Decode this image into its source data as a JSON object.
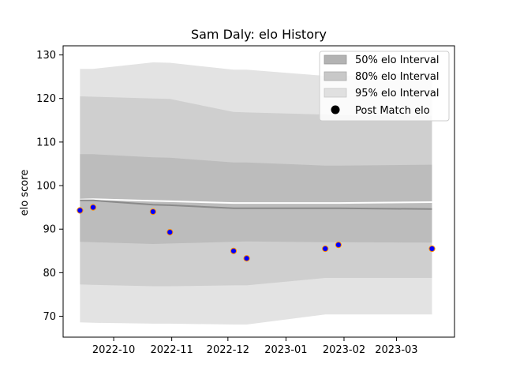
{
  "chart_data": {
    "type": "area",
    "title": "Sam Daly: elo History",
    "xlabel": "",
    "ylabel": "elo score",
    "x_ticks": [
      "2022-10",
      "2022-11",
      "2022-12",
      "2023-01",
      "2023-02",
      "2023-03"
    ],
    "x_tick_dates": [
      "2022-10-01",
      "2022-11-01",
      "2022-12-01",
      "2023-01-01",
      "2023-02-01",
      "2023-03-01"
    ],
    "xlim": [
      "2022-09-04",
      "2023-04-01"
    ],
    "y_ticks": [
      "70",
      "80",
      "90",
      "100",
      "110",
      "120",
      "130"
    ],
    "ylim": [
      65.2,
      132.1
    ],
    "grid": false,
    "legend": {
      "position": "top-right",
      "entries": [
        "50% elo Interval",
        "80% elo Interval",
        "95% elo Interval",
        "Post Match elo"
      ]
    },
    "band_dates": [
      "2022-09-13",
      "2022-09-20",
      "2022-10-22",
      "2022-10-31",
      "2022-12-04",
      "2022-12-11",
      "2023-01-22",
      "2023-01-29",
      "2023-03-20"
    ],
    "series": [
      {
        "name": "95% elo Interval",
        "lower": [
          68.6,
          68.5,
          68.3,
          68.3,
          68.1,
          68.1,
          70.4,
          70.4,
          70.4
        ],
        "upper": [
          126.8,
          126.8,
          128.3,
          128.2,
          126.6,
          126.6,
          125.2,
          125.2,
          126.0
        ],
        "color": "#e3e3e3"
      },
      {
        "name": "80% elo Interval",
        "lower": [
          77.3,
          77.2,
          76.9,
          76.9,
          77.1,
          77.1,
          78.8,
          78.8,
          78.8
        ],
        "upper": [
          120.5,
          120.4,
          120.0,
          119.9,
          116.9,
          116.8,
          116.3,
          116.2,
          116.0
        ],
        "color": "#cfcfcf"
      },
      {
        "name": "50% elo Interval",
        "lower": [
          87.1,
          87.0,
          86.6,
          86.7,
          87.1,
          87.2,
          87.0,
          87.0,
          86.9
        ],
        "upper": [
          107.2,
          107.2,
          106.5,
          106.4,
          105.3,
          105.3,
          104.6,
          104.6,
          104.8
        ],
        "color": "#bcbcbc"
      }
    ],
    "mean_line": {
      "values": [
        96.6,
        96.6,
        95.6,
        95.5,
        94.8,
        94.8,
        94.8,
        94.8,
        94.6
      ],
      "color": "#8a8a8a"
    },
    "upper_white_line": {
      "values": [
        96.8,
        96.9,
        96.5,
        96.4,
        96.0,
        96.0,
        96.0,
        96.0,
        96.2
      ]
    },
    "points": {
      "name": "Post Match elo",
      "dates": [
        "2022-09-13",
        "2022-09-20",
        "2022-10-22",
        "2022-10-31",
        "2022-12-04",
        "2022-12-11",
        "2023-01-22",
        "2023-01-29",
        "2023-03-20"
      ],
      "values": [
        94.3,
        95.0,
        94.0,
        89.3,
        85.0,
        83.3,
        85.5,
        86.4,
        85.5
      ],
      "fill": "#0000ff",
      "edge": "#ff8c00"
    }
  }
}
